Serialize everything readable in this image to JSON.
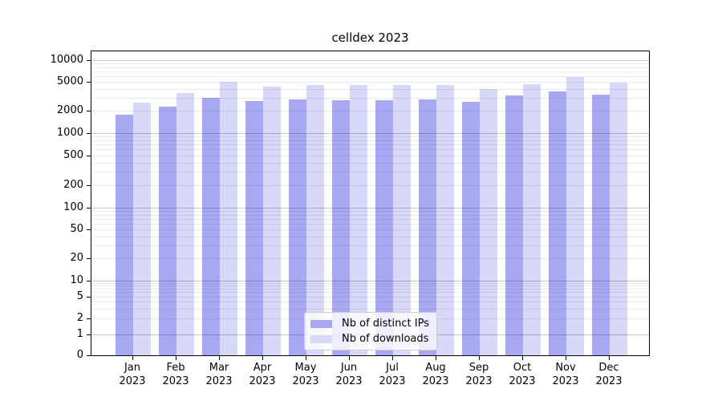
{
  "figure": {
    "title": "celldex 2023"
  },
  "chart_data": {
    "type": "bar",
    "title": "celldex 2023",
    "x_year_line": "2023",
    "months": [
      "Jan",
      "Feb",
      "Mar",
      "Apr",
      "May",
      "Jun",
      "Jul",
      "Aug",
      "Sep",
      "Oct",
      "Nov",
      "Dec"
    ],
    "categories": [
      "Jan 2023",
      "Feb 2023",
      "Mar 2023",
      "Apr 2023",
      "May 2023",
      "Jun 2023",
      "Jul 2023",
      "Aug 2023",
      "Sep 2023",
      "Oct 2023",
      "Nov 2023",
      "Dec 2023"
    ],
    "series": [
      {
        "name": "Nb of distinct IPs",
        "color": "#a8a8f2",
        "values": [
          1770,
          2270,
          3000,
          2750,
          2900,
          2830,
          2800,
          2870,
          2700,
          3250,
          3700,
          3350
        ]
      },
      {
        "name": "Nb of downloads",
        "color": "#d8d8f8",
        "values": [
          2600,
          3500,
          5000,
          4350,
          4550,
          4600,
          4600,
          4600,
          4000,
          4650,
          5900,
          4900
        ]
      }
    ],
    "y_axis": {
      "scale": "log",
      "ticks": [
        0,
        1,
        2,
        5,
        10,
        20,
        50,
        100,
        200,
        500,
        1000,
        2000,
        5000,
        10000
      ],
      "ylim": [
        0,
        14000
      ]
    },
    "grid": {
      "enabled": true,
      "minor_per_decade": [
        2,
        3,
        4,
        5,
        6,
        7,
        8,
        9
      ]
    },
    "legend": {
      "position": "bottom-center-inside"
    }
  },
  "colors": {
    "bar_dark": "#a8a8f2",
    "bar_light": "#d8d8f8",
    "grid_major": "#c6c6c6",
    "grid_minor": "#ececec",
    "frame": "#000000",
    "legend_border": "#cccccc"
  }
}
